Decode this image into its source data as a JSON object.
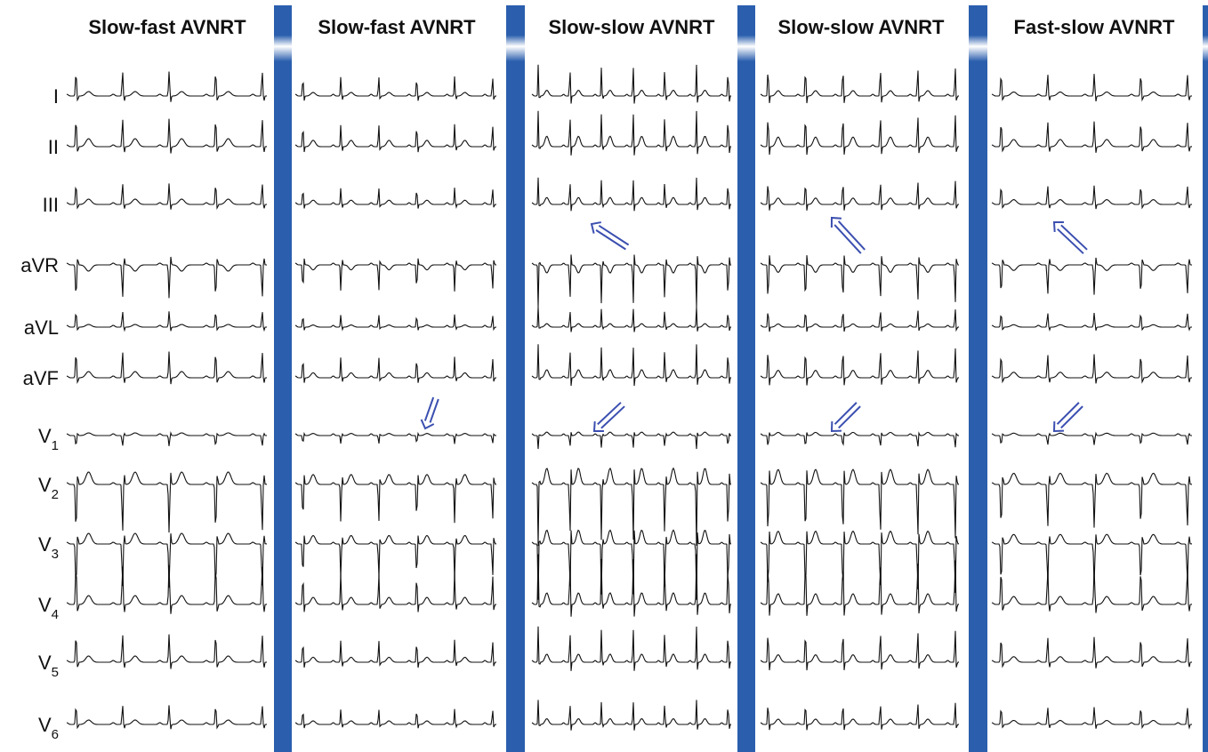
{
  "panels": [
    {
      "title": "Slow-fast AVNRT"
    },
    {
      "title": "Slow-fast AVNRT"
    },
    {
      "title": "Slow-slow AVNRT"
    },
    {
      "title": "Slow-slow AVNRT"
    },
    {
      "title": "Fast-slow AVNRT"
    }
  ],
  "leads": [
    {
      "name": "I"
    },
    {
      "name": "II"
    },
    {
      "name": "III"
    },
    {
      "name": "aVR"
    },
    {
      "name": "aVL"
    },
    {
      "name": "aVF"
    },
    {
      "name": "V",
      "subscript": "1"
    },
    {
      "name": "V",
      "subscript": "2"
    },
    {
      "name": "V",
      "subscript": "3"
    },
    {
      "name": "V",
      "subscript": "4"
    },
    {
      "name": "V",
      "subscript": "5"
    },
    {
      "name": "V",
      "subscript": "6"
    }
  ]
}
